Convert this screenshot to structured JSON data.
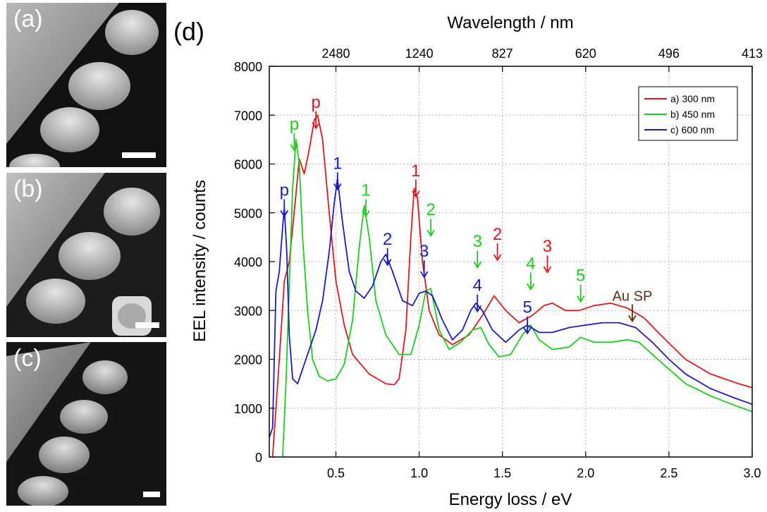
{
  "panels": [
    {
      "label": "(a)"
    },
    {
      "label": "(b)"
    },
    {
      "label": "(c)"
    }
  ],
  "figure_label": "(d)",
  "colors": {
    "a": "#e8141b",
    "b": "#18d018",
    "c": "#1a1ac8",
    "au": "#5a2d14"
  },
  "chart_data": {
    "type": "line",
    "xlabel": "Energy loss / eV",
    "ylabel": "EEL intensity / counts",
    "top_axis_label": "Wavelength / nm",
    "xlim": [
      0.1,
      3.0
    ],
    "ylim": [
      0,
      8000
    ],
    "grid": true,
    "legend_position": "top-right",
    "x_ticks": [
      "0.5",
      "1.0",
      "1.5",
      "2.0",
      "2.5",
      "3.0"
    ],
    "x_tick_values": [
      0.5,
      1.0,
      1.5,
      2.0,
      2.5,
      3.0
    ],
    "y_ticks": [
      "0",
      "1000",
      "2000",
      "3000",
      "4000",
      "5000",
      "6000",
      "7000",
      "8000"
    ],
    "y_tick_values": [
      0,
      1000,
      2000,
      3000,
      4000,
      5000,
      6000,
      7000,
      8000
    ],
    "top_ticks": [
      "2480",
      "1240",
      "827",
      "620",
      "496",
      "413"
    ],
    "top_tick_energies": [
      0.5,
      1.0,
      1.5,
      2.0,
      2.5,
      3.0
    ],
    "series": [
      {
        "name": "a) 300 nm",
        "color": "#e8141b",
        "points": [
          [
            0.12,
            0
          ],
          [
            0.16,
            2000
          ],
          [
            0.19,
            3600
          ],
          [
            0.22,
            4000
          ],
          [
            0.255,
            5200
          ],
          [
            0.28,
            6100
          ],
          [
            0.31,
            5800
          ],
          [
            0.34,
            6300
          ],
          [
            0.37,
            6900
          ],
          [
            0.39,
            7000
          ],
          [
            0.42,
            6500
          ],
          [
            0.46,
            5000
          ],
          [
            0.5,
            3600
          ],
          [
            0.55,
            2700
          ],
          [
            0.6,
            2100
          ],
          [
            0.7,
            1700
          ],
          [
            0.8,
            1500
          ],
          [
            0.85,
            1480
          ],
          [
            0.88,
            1600
          ],
          [
            0.92,
            2600
          ],
          [
            0.95,
            4500
          ],
          [
            0.97,
            5500
          ],
          [
            0.99,
            5300
          ],
          [
            1.02,
            4000
          ],
          [
            1.06,
            3000
          ],
          [
            1.12,
            2500
          ],
          [
            1.2,
            2300
          ],
          [
            1.3,
            2500
          ],
          [
            1.38,
            2900
          ],
          [
            1.45,
            3300
          ],
          [
            1.52,
            3000
          ],
          [
            1.6,
            2750
          ],
          [
            1.68,
            2900
          ],
          [
            1.75,
            3100
          ],
          [
            1.8,
            3150
          ],
          [
            1.88,
            3000
          ],
          [
            1.96,
            3000
          ],
          [
            2.05,
            3100
          ],
          [
            2.15,
            3150
          ],
          [
            2.25,
            3050
          ],
          [
            2.35,
            2850
          ],
          [
            2.45,
            2500
          ],
          [
            2.6,
            2000
          ],
          [
            2.75,
            1700
          ],
          [
            2.9,
            1520
          ],
          [
            3.0,
            1420
          ]
        ]
      },
      {
        "name": "b) 450 nm",
        "color": "#18d018",
        "points": [
          [
            0.18,
            0
          ],
          [
            0.2,
            1500
          ],
          [
            0.22,
            3500
          ],
          [
            0.24,
            5500
          ],
          [
            0.26,
            6500
          ],
          [
            0.28,
            6000
          ],
          [
            0.3,
            4500
          ],
          [
            0.33,
            3000
          ],
          [
            0.36,
            2000
          ],
          [
            0.4,
            1650
          ],
          [
            0.45,
            1560
          ],
          [
            0.5,
            1600
          ],
          [
            0.55,
            1900
          ],
          [
            0.6,
            2800
          ],
          [
            0.64,
            4300
          ],
          [
            0.67,
            5150
          ],
          [
            0.7,
            4500
          ],
          [
            0.74,
            3200
          ],
          [
            0.8,
            2500
          ],
          [
            0.88,
            2100
          ],
          [
            0.95,
            2100
          ],
          [
            1.0,
            2700
          ],
          [
            1.04,
            3400
          ],
          [
            1.07,
            3450
          ],
          [
            1.12,
            2600
          ],
          [
            1.18,
            2200
          ],
          [
            1.25,
            2350
          ],
          [
            1.32,
            2600
          ],
          [
            1.37,
            2650
          ],
          [
            1.42,
            2300
          ],
          [
            1.48,
            2050
          ],
          [
            1.55,
            2100
          ],
          [
            1.62,
            2500
          ],
          [
            1.67,
            2700
          ],
          [
            1.72,
            2400
          ],
          [
            1.8,
            2200
          ],
          [
            1.9,
            2250
          ],
          [
            1.97,
            2450
          ],
          [
            2.05,
            2350
          ],
          [
            2.15,
            2350
          ],
          [
            2.25,
            2400
          ],
          [
            2.32,
            2350
          ],
          [
            2.4,
            2100
          ],
          [
            2.5,
            1800
          ],
          [
            2.6,
            1500
          ],
          [
            2.75,
            1250
          ],
          [
            2.9,
            1050
          ],
          [
            3.0,
            930
          ]
        ]
      },
      {
        "name": "c) 600 nm",
        "color": "#1a1ac8",
        "points": [
          [
            0.1,
            400
          ],
          [
            0.12,
            600
          ],
          [
            0.14,
            3400
          ],
          [
            0.16,
            3800
          ],
          [
            0.18,
            4700
          ],
          [
            0.19,
            5100
          ],
          [
            0.205,
            4200
          ],
          [
            0.22,
            2500
          ],
          [
            0.24,
            1600
          ],
          [
            0.27,
            1500
          ],
          [
            0.3,
            1800
          ],
          [
            0.34,
            2200
          ],
          [
            0.38,
            2600
          ],
          [
            0.42,
            3200
          ],
          [
            0.46,
            4200
          ],
          [
            0.49,
            5200
          ],
          [
            0.51,
            5700
          ],
          [
            0.54,
            4800
          ],
          [
            0.58,
            3800
          ],
          [
            0.62,
            3400
          ],
          [
            0.67,
            3250
          ],
          [
            0.72,
            3500
          ],
          [
            0.77,
            4000
          ],
          [
            0.8,
            4150
          ],
          [
            0.84,
            3800
          ],
          [
            0.9,
            3200
          ],
          [
            0.96,
            3100
          ],
          [
            1.0,
            3350
          ],
          [
            1.04,
            3400
          ],
          [
            1.08,
            3300
          ],
          [
            1.14,
            2800
          ],
          [
            1.2,
            2400
          ],
          [
            1.26,
            2600
          ],
          [
            1.31,
            3000
          ],
          [
            1.34,
            3150
          ],
          [
            1.38,
            3000
          ],
          [
            1.44,
            2600
          ],
          [
            1.52,
            2350
          ],
          [
            1.6,
            2600
          ],
          [
            1.65,
            2700
          ],
          [
            1.72,
            2550
          ],
          [
            1.8,
            2550
          ],
          [
            1.9,
            2650
          ],
          [
            2.0,
            2700
          ],
          [
            2.1,
            2750
          ],
          [
            2.2,
            2750
          ],
          [
            2.3,
            2650
          ],
          [
            2.4,
            2350
          ],
          [
            2.5,
            2000
          ],
          [
            2.6,
            1700
          ],
          [
            2.75,
            1400
          ],
          [
            2.9,
            1200
          ],
          [
            3.0,
            1080
          ]
        ]
      }
    ],
    "annotations": [
      {
        "text": "p",
        "x": 0.19,
        "y": 5350,
        "color": "#1a1ac8"
      },
      {
        "text": "p",
        "x": 0.25,
        "y": 6700,
        "color": "#18d018"
      },
      {
        "text": "p",
        "x": 0.38,
        "y": 7150,
        "color": "#e8141b"
      },
      {
        "text": "1",
        "x": 0.51,
        "y": 5900,
        "color": "#1a1ac8"
      },
      {
        "text": "1",
        "x": 0.68,
        "y": 5350,
        "color": "#18d018"
      },
      {
        "text": "1",
        "x": 0.98,
        "y": 5750,
        "color": "#e8141b"
      },
      {
        "text": "2",
        "x": 0.81,
        "y": 4350,
        "color": "#1a1ac8"
      },
      {
        "text": "2",
        "x": 1.07,
        "y": 4950,
        "color": "#18d018"
      },
      {
        "text": "3",
        "x": 1.03,
        "y": 4100,
        "color": "#1a1ac8"
      },
      {
        "text": "3",
        "x": 1.35,
        "y": 4300,
        "color": "#18d018"
      },
      {
        "text": "2",
        "x": 1.47,
        "y": 4450,
        "color": "#e8141b"
      },
      {
        "text": "4",
        "x": 1.35,
        "y": 3400,
        "color": "#1a1ac8"
      },
      {
        "text": "4",
        "x": 1.67,
        "y": 3850,
        "color": "#18d018"
      },
      {
        "text": "5",
        "x": 1.65,
        "y": 2950,
        "color": "#1a1ac8"
      },
      {
        "text": "3",
        "x": 1.77,
        "y": 4200,
        "color": "#e8141b"
      },
      {
        "text": "5",
        "x": 1.97,
        "y": 3600,
        "color": "#18d018"
      },
      {
        "text": "Au SP",
        "x": 2.28,
        "y": 3200,
        "color": "#5a2d14"
      }
    ]
  }
}
